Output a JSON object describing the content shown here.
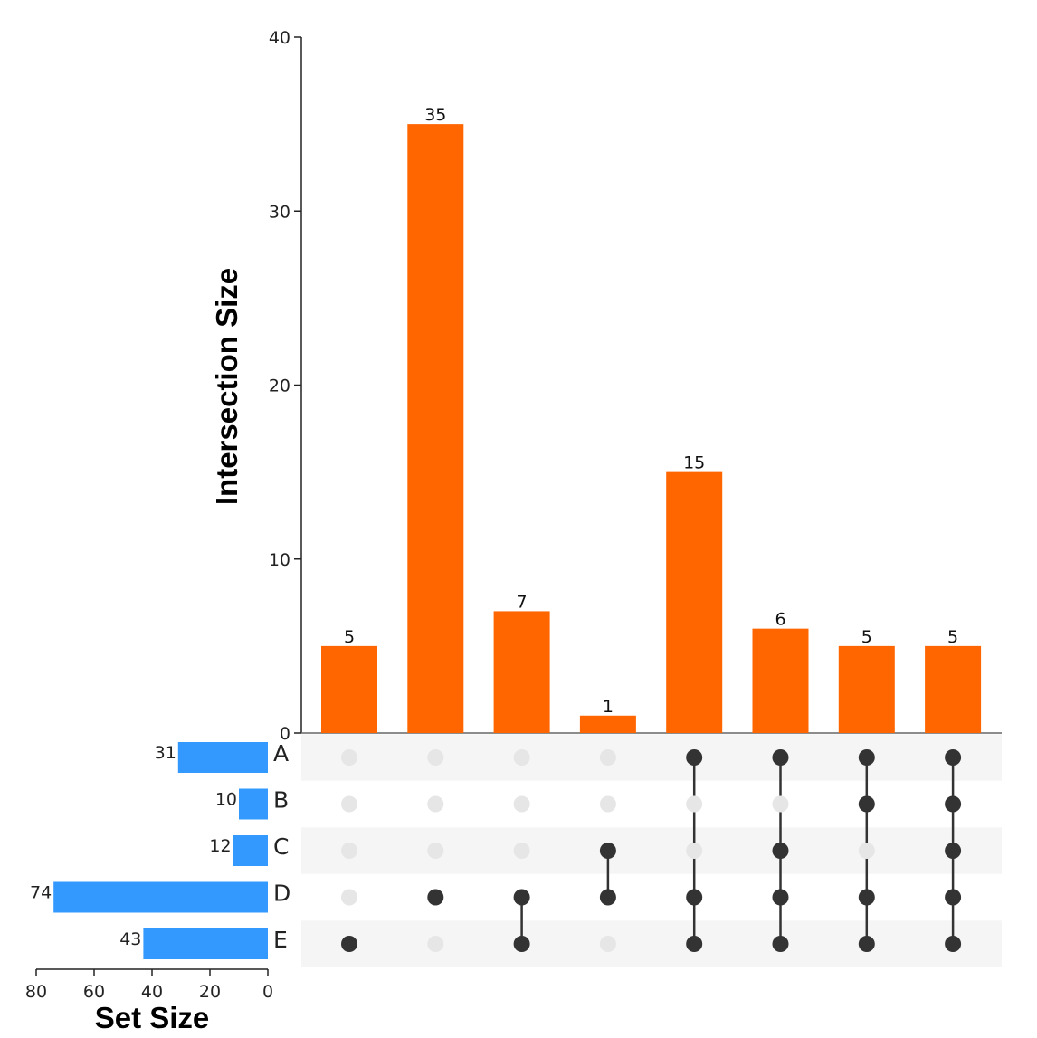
{
  "chart_data": {
    "type": "upset",
    "colors": {
      "intersection_bar": "#ff6600",
      "set_bar": "#3399ff",
      "dot_active": "#333333",
      "dot_inactive": "#e6e6e6",
      "stripe": "#f5f5f5"
    },
    "intersections": {
      "ylabel": "Intersection Size",
      "ylim": [
        0,
        40
      ],
      "yticks": [
        0,
        10,
        20,
        30,
        40
      ],
      "values": [
        5,
        35,
        7,
        1,
        15,
        6,
        5,
        5
      ],
      "labels": [
        "5",
        "35",
        "7",
        "1",
        "15",
        "6",
        "5",
        "5"
      ],
      "membership": [
        [
          "E"
        ],
        [
          "D"
        ],
        [
          "D",
          "E"
        ],
        [
          "C",
          "D"
        ],
        [
          "A",
          "D",
          "E"
        ],
        [
          "A",
          "C",
          "D",
          "E"
        ],
        [
          "A",
          "B",
          "D",
          "E"
        ],
        [
          "A",
          "B",
          "C",
          "D",
          "E"
        ]
      ]
    },
    "sets": {
      "xlabel": "Set Size",
      "xlim": [
        0,
        80
      ],
      "xticks": [
        80,
        60,
        40,
        20,
        0
      ],
      "names": [
        "A",
        "B",
        "C",
        "D",
        "E"
      ],
      "sizes": [
        31,
        10,
        12,
        74,
        43
      ],
      "labels": [
        "31",
        "10",
        "12",
        "74",
        "43"
      ]
    }
  }
}
